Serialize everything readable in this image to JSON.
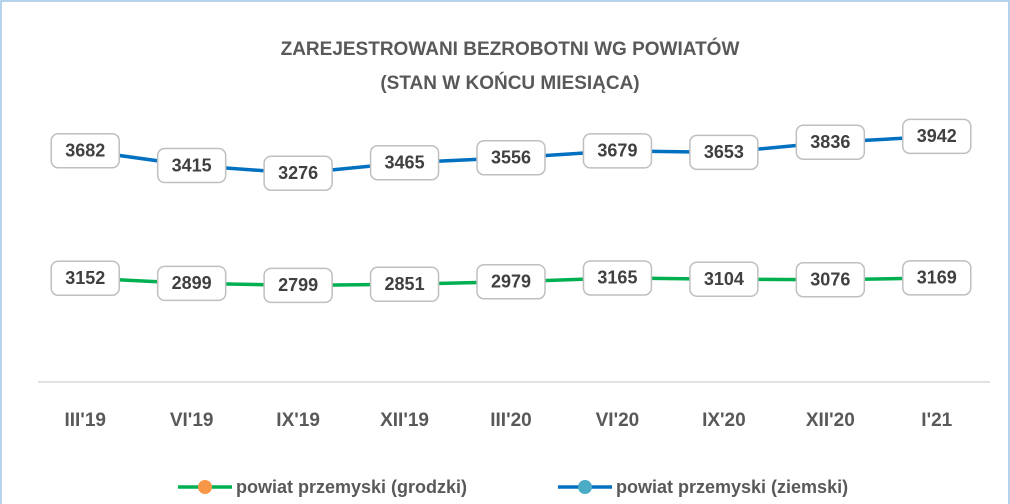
{
  "chart_data": {
    "type": "line",
    "title": "ZAREJESTROWANI BEZROBOTNI WG POWIATÓW",
    "subtitle": "(STAN W KOŃCU MIESIĄCA)",
    "categories": [
      "III'19",
      "VI'19",
      "IX'19",
      "XII'19",
      "III'20",
      "VI'20",
      "IX'20",
      "XII'20",
      "I'21"
    ],
    "series": [
      {
        "name": "powiat przemyski (grodzki)",
        "color": "#00b050",
        "marker_color": "#f79646",
        "values": [
          3152,
          2899,
          2799,
          2851,
          2979,
          3165,
          3104,
          3076,
          3169
        ]
      },
      {
        "name": "powiat przemyski (ziemski)",
        "color": "#0070c0",
        "marker_color": "#4bacc6",
        "axis": "y2",
        "values": [
          3682,
          3415,
          3276,
          3465,
          3556,
          3679,
          3653,
          3836,
          3942
        ]
      }
    ],
    "ylim": [
      -2000,
      12000
    ],
    "y2lim": [
      -500,
      4600
    ],
    "grid": false,
    "legend": "bottom"
  }
}
